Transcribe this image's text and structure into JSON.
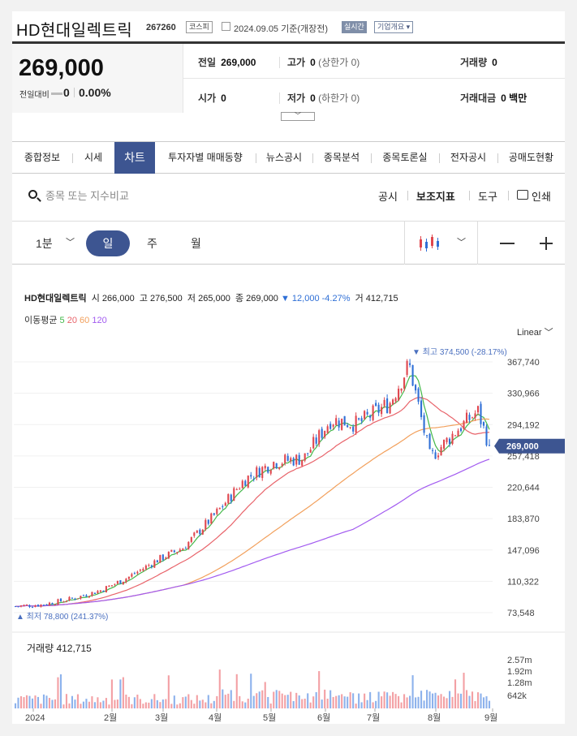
{
  "header": {
    "name": "HD현대일렉트릭",
    "code": "267260",
    "market": "코스피",
    "date": "2024.09.05 기준(개장전)",
    "realtime": "실시간",
    "company_info": "기업개요"
  },
  "price": {
    "current": "269,000",
    "change_label": "전일대비",
    "change": "0",
    "change_pct": "0.00%"
  },
  "stats": {
    "prev_close": {
      "label": "전일",
      "value": "269,000"
    },
    "high": {
      "label": "고가",
      "value": "0",
      "sub": "(상한가 0)"
    },
    "volume": {
      "label": "거래량",
      "value": "0"
    },
    "open": {
      "label": "시가",
      "value": "0"
    },
    "low": {
      "label": "저가",
      "value": "0",
      "sub": "(하한가 0)"
    },
    "amount": {
      "label": "거래대금",
      "value": "0 백만"
    }
  },
  "tabs": [
    "종합정보",
    "시세",
    "차트",
    "투자자별 매매동향",
    "뉴스공시",
    "종목분석",
    "종목토론실",
    "전자공시",
    "공매도현황"
  ],
  "active_tab": "차트",
  "search": {
    "placeholder": "종목 또는 지수비교"
  },
  "tools": {
    "disclosure": "공시",
    "indicator": "보조지표",
    "tool": "도구",
    "print": "인쇄"
  },
  "period": {
    "minute": "1분",
    "day": "일",
    "week": "주",
    "month": "월"
  },
  "legend": {
    "name": "HD현대일렉트릭",
    "open_label": "시",
    "open": "266,000",
    "high_label": "고",
    "high": "276,500",
    "low_label": "저",
    "low": "265,000",
    "close_label": "종",
    "close": "269,000",
    "change": "▼ 12,000 -4.27%",
    "vol_label": "거",
    "vol": "412,715"
  },
  "ma": {
    "label": "이동평균",
    "p5": "5",
    "p20": "20",
    "p60": "60",
    "p120": "120"
  },
  "scale": "Linear",
  "volume_label": "거래량 412,715",
  "colors": {
    "up": "#e0464e",
    "down": "#2f6fd6",
    "ma5": "#43b84a",
    "ma20": "#e8636a",
    "ma60": "#f2a05c",
    "ma120": "#a25bf0",
    "accent": "#3d5591"
  },
  "chart_data": {
    "type": "candlestick",
    "title": "HD현대일렉트릭",
    "y_axis_ticks": [
      367740,
      330966,
      294192,
      257418,
      220644,
      183870,
      147096,
      110322,
      73548
    ],
    "x_axis_ticks": [
      "2024",
      "2월",
      "3월",
      "4월",
      "5월",
      "6월",
      "7월",
      "8월",
      "9월"
    ],
    "max_label": "최고 374,500 (-28.17%)",
    "min_label": "최저 78,800 (241.37%)",
    "last_price_label": "269,000",
    "volume_ticks": [
      "2.57m",
      "1.92m",
      "1.28m",
      "642k"
    ],
    "close_series": [
      {
        "x": "2024-01",
        "y": 81000
      },
      {
        "x": "2024-01-15",
        "y": 83000
      },
      {
        "x": "2024-01-31",
        "y": 90000
      },
      {
        "x": "2024-02-15",
        "y": 100000
      },
      {
        "x": "2024-02-29",
        "y": 115000
      },
      {
        "x": "2024-03-15",
        "y": 135000
      },
      {
        "x": "2024-03-29",
        "y": 150000
      },
      {
        "x": "2024-04-15",
        "y": 190000
      },
      {
        "x": "2024-04-30",
        "y": 230000
      },
      {
        "x": "2024-05-15",
        "y": 250000
      },
      {
        "x": "2024-05-31",
        "y": 255000
      },
      {
        "x": "2024-06-14",
        "y": 300000
      },
      {
        "x": "2024-06-28",
        "y": 295000
      },
      {
        "x": "2024-07-15",
        "y": 320000
      },
      {
        "x": "2024-07-25",
        "y": 365000
      },
      {
        "x": "2024-08-05",
        "y": 255000
      },
      {
        "x": "2024-08-20",
        "y": 290000
      },
      {
        "x": "2024-08-30",
        "y": 310000
      },
      {
        "x": "2024-09-05",
        "y": 269000
      }
    ]
  }
}
